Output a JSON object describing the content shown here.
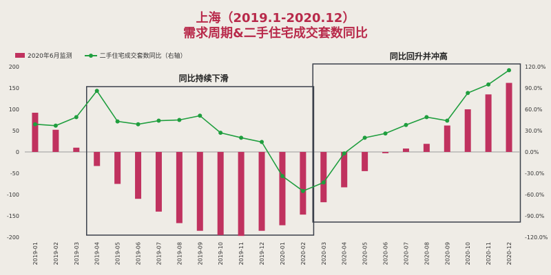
{
  "title_line1": "上海（2019.1-2020.12）",
  "title_line2": "需求周期&二手住宅成交套数同比",
  "legend": {
    "bar_label": "2020年6月监测",
    "line_label": "二手住宅成交套数同比（右轴）"
  },
  "annotations": {
    "box1_label": "同比持续下滑",
    "box2_label": "同比回升并冲高"
  },
  "colors": {
    "bar": "#c0325f",
    "line": "#1f9e3e",
    "title": "#b8294a",
    "box": "#3a3f4a"
  },
  "chart_data": {
    "type": "bar",
    "categories": [
      "2019-01",
      "2019-02",
      "2019-03",
      "2019-04",
      "2019-05",
      "2019-06",
      "2019-07",
      "2019-08",
      "2019-09",
      "2019-10",
      "2019-11",
      "2019-12",
      "2020-01",
      "2020-02",
      "2020-03",
      "2020-04",
      "2020-05",
      "2020-06",
      "2020-07",
      "2020-08",
      "2020-09",
      "2020-10",
      "2020-11",
      "2020-12"
    ],
    "series": [
      {
        "name": "2020年6月监测",
        "type": "bar",
        "axis": "left",
        "values": [
          92,
          52,
          10,
          -33,
          -75,
          -110,
          -140,
          -167,
          -185,
          -195,
          -197,
          -185,
          -172,
          -147,
          -118,
          -83,
          -45,
          -3,
          8,
          19,
          62,
          100,
          135,
          162
        ]
      },
      {
        "name": "二手住宅成交套数同比（右轴）",
        "type": "line",
        "axis": "right",
        "values": [
          39,
          37,
          49,
          86,
          43,
          39,
          44,
          45,
          51,
          27,
          20,
          14,
          -34,
          -55,
          -43,
          -2,
          20,
          26,
          38,
          49,
          44,
          83,
          95,
          115
        ]
      }
    ],
    "yleft": {
      "min": -200,
      "max": 200,
      "step": 50,
      "ticks": [
        "200",
        "150",
        "100",
        "50",
        "0",
        "-50",
        "-100",
        "-150",
        "-200"
      ]
    },
    "yright": {
      "min": -120,
      "max": 120,
      "step": 30,
      "ticks": [
        "120.0%",
        "90.0%",
        "60.0%",
        "30.0%",
        "0.0%",
        "-30.0%",
        "-60.0%",
        "-90.0%",
        "-120.0%"
      ]
    },
    "grid": false,
    "legend_position": "top-left"
  }
}
